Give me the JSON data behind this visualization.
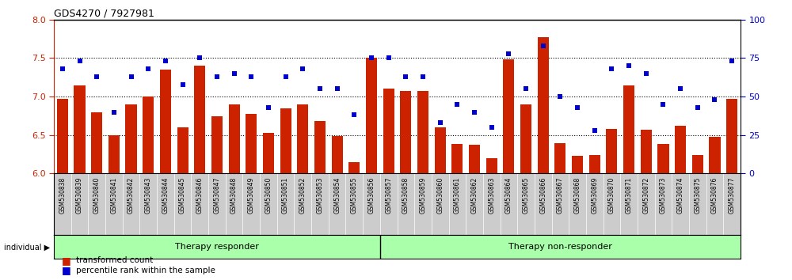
{
  "title": "GDS4270 / 7927981",
  "samples": [
    "GSM530838",
    "GSM530839",
    "GSM530840",
    "GSM530841",
    "GSM530842",
    "GSM530843",
    "GSM530844",
    "GSM530845",
    "GSM530846",
    "GSM530847",
    "GSM530848",
    "GSM530849",
    "GSM530850",
    "GSM530851",
    "GSM530852",
    "GSM530853",
    "GSM530854",
    "GSM530855",
    "GSM530856",
    "GSM530857",
    "GSM530858",
    "GSM530859",
    "GSM530860",
    "GSM530861",
    "GSM530862",
    "GSM530863",
    "GSM530864",
    "GSM530865",
    "GSM530866",
    "GSM530867",
    "GSM530868",
    "GSM530869",
    "GSM530870",
    "GSM530871",
    "GSM530872",
    "GSM530873",
    "GSM530874",
    "GSM530875",
    "GSM530876",
    "GSM530877"
  ],
  "transformed_count": [
    6.97,
    7.15,
    6.8,
    6.5,
    6.9,
    7.0,
    7.35,
    6.6,
    7.4,
    6.74,
    6.9,
    6.78,
    6.53,
    6.85,
    6.9,
    6.68,
    6.49,
    6.15,
    7.5,
    7.1,
    7.07,
    7.07,
    6.6,
    6.38,
    6.37,
    6.2,
    7.48,
    6.9,
    7.77,
    6.4,
    6.23,
    6.24,
    6.58,
    7.15,
    6.57,
    6.38,
    6.62,
    6.24,
    6.48,
    6.97
  ],
  "percentile_rank": [
    68,
    73,
    63,
    40,
    63,
    68,
    73,
    58,
    75,
    63,
    65,
    63,
    43,
    63,
    68,
    55,
    55,
    38,
    75,
    75,
    63,
    63,
    33,
    45,
    40,
    30,
    78,
    55,
    83,
    50,
    43,
    28,
    68,
    70,
    65,
    45,
    55,
    43,
    48,
    73
  ],
  "responder_count": 19,
  "ylim_left": [
    6.0,
    8.0
  ],
  "ylim_right": [
    0,
    100
  ],
  "yticks_left": [
    6.0,
    6.5,
    7.0,
    7.5,
    8.0
  ],
  "yticks_right": [
    0,
    25,
    50,
    75,
    100
  ],
  "bar_color": "#cc2200",
  "scatter_color": "#0000cc",
  "bar_baseline": 6.0,
  "group1_label": "Therapy responder",
  "group2_label": "Therapy non-responder",
  "group_bg_color": "#aaffaa",
  "tick_bg_color": "#cccccc",
  "hgrid_lines": [
    6.5,
    7.0,
    7.5
  ]
}
